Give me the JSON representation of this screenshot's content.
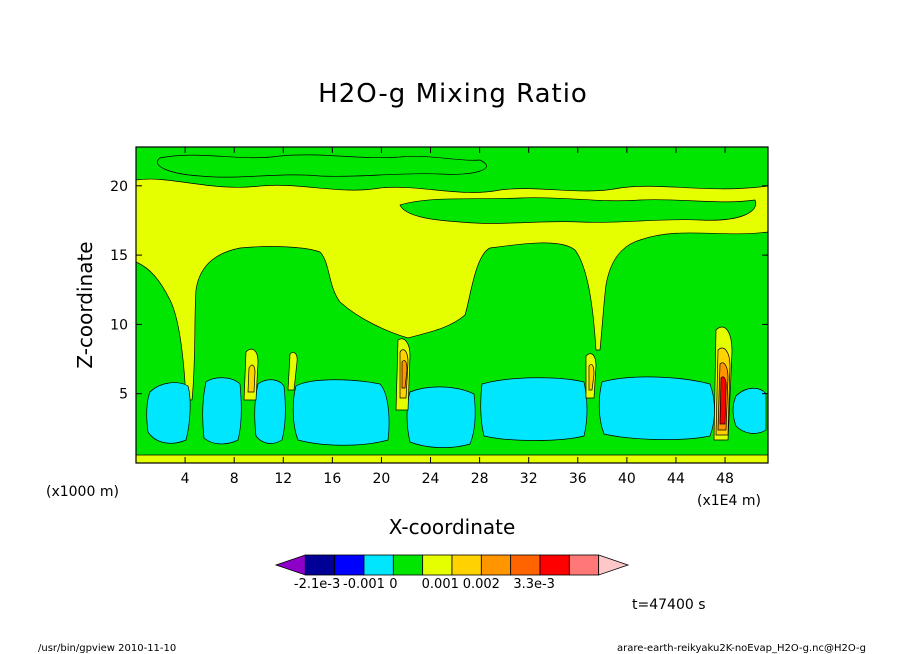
{
  "chart_data": {
    "type": "contour",
    "title": "H2O-g Mixing Ratio",
    "xlabel": "X-coordinate",
    "ylabel": "Z-coordinate",
    "x_unit_left": "(x1000 m)",
    "x_unit_right": "(x1E4 m)",
    "xlim": [
      0,
      51.5
    ],
    "ylim": [
      0,
      22.8
    ],
    "x_ticks": [
      4,
      8,
      12,
      16,
      20,
      24,
      28,
      32,
      36,
      40,
      44,
      48
    ],
    "y_ticks": [
      5,
      10,
      15,
      20
    ],
    "colorbar": {
      "colors": [
        "#8c00c8",
        "#000096",
        "#0000ff",
        "#00e6ff",
        "#00e600",
        "#e6ff00",
        "#ffd200",
        "#ff9600",
        "#ff6400",
        "#ff0000",
        "#ff7878",
        "#ffc8c8"
      ],
      "labels": [
        "-2.1e-3",
        "-0.001",
        "0",
        "0.001",
        "0.002",
        "3.3e-3"
      ]
    },
    "regions": [
      {
        "level": "cyan",
        "color": "#00e6ff",
        "note": "near-surface minima blocks (z≈1-6)"
      },
      {
        "level": "green",
        "color": "#00e600",
        "note": "background field"
      },
      {
        "level": "yellow",
        "color": "#e6ff00",
        "note": "upper layer and mid plume"
      },
      {
        "level": "orange",
        "color": "#ffd200",
        "note": "narrow positive columns"
      },
      {
        "level": "red",
        "color": "#ff0000",
        "note": "column core near x≈48"
      }
    ]
  },
  "time_label": "t=47400 s",
  "footer_left": "/usr/bin/gpview   2010-11-10",
  "footer_right": "arare-earth-reikyaku2K-noEvap_H2O-g.nc@H2O-g"
}
